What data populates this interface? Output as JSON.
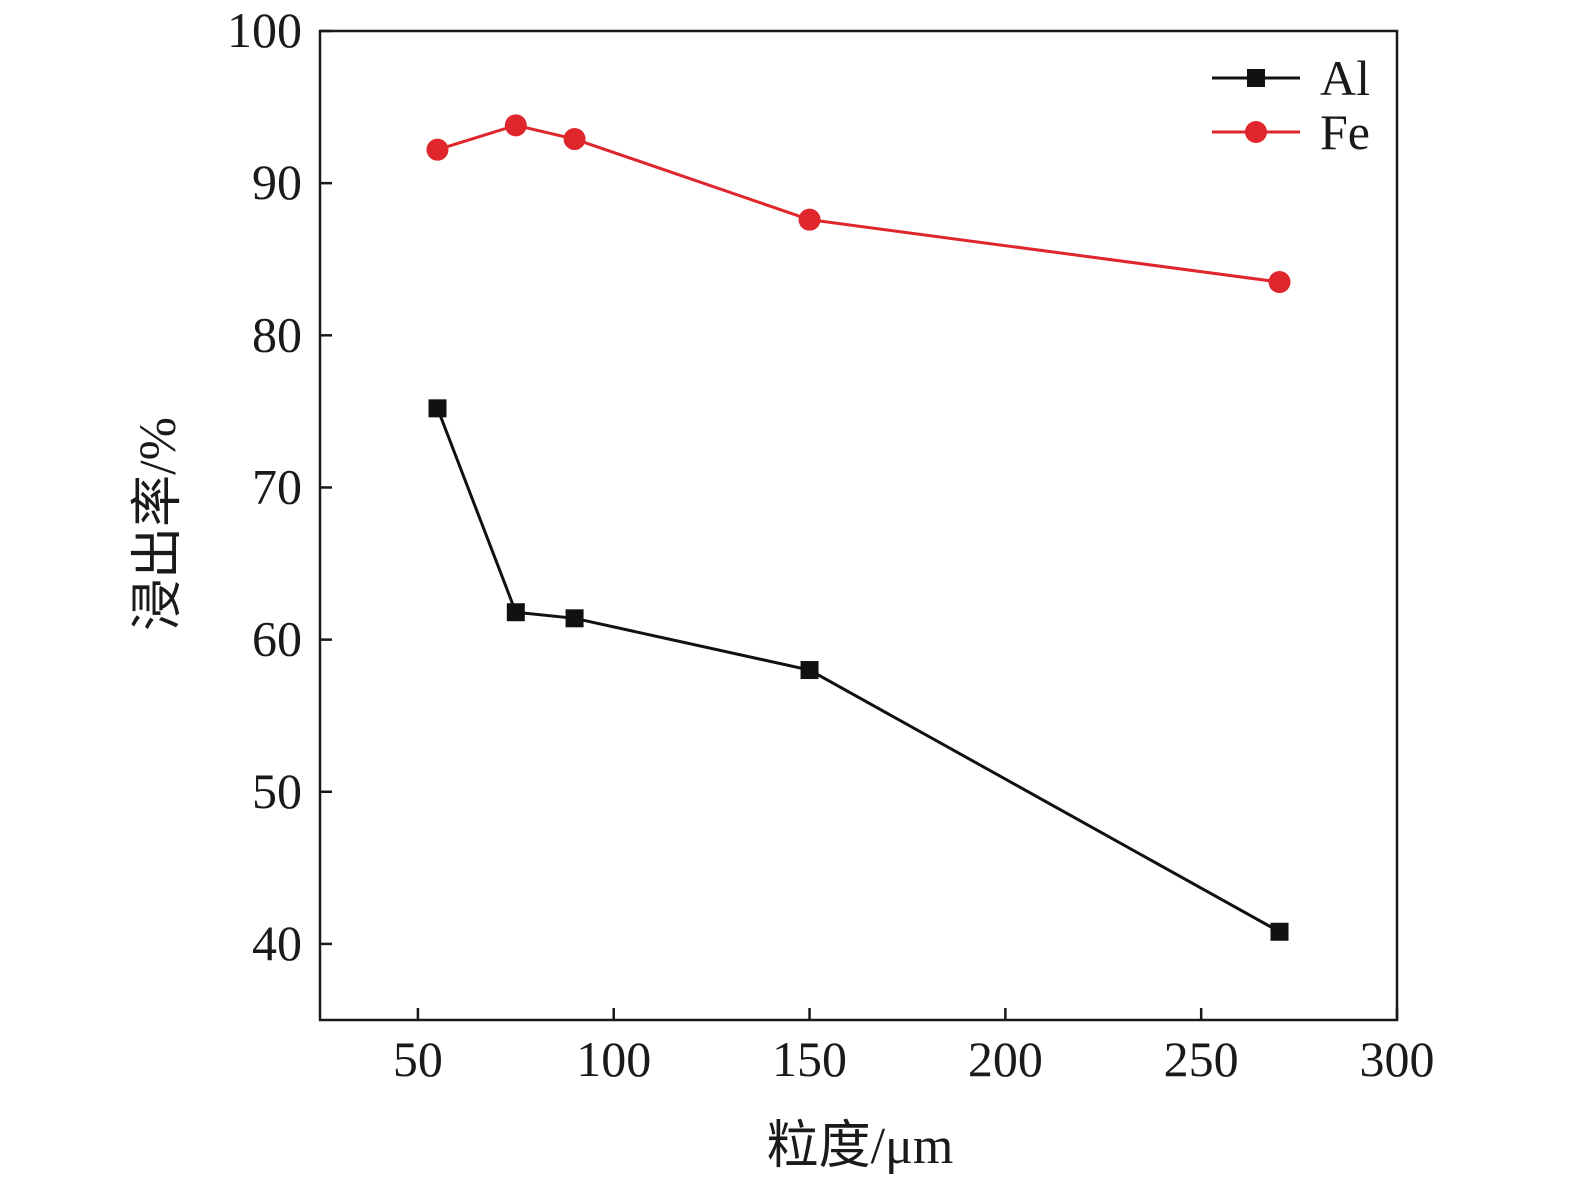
{
  "chart_data": {
    "type": "line",
    "title": "",
    "xlabel": "粒度/μm",
    "ylabel": "浸出率/%",
    "x": [
      55,
      75,
      90,
      150,
      270
    ],
    "xlim": [
      25,
      300
    ],
    "ylim": [
      35,
      100
    ],
    "x_ticks": [
      50,
      100,
      150,
      200,
      250,
      300
    ],
    "y_ticks": [
      40,
      50,
      60,
      70,
      80,
      90,
      100
    ],
    "grid": false,
    "legend_position": "top-right",
    "series": [
      {
        "name": "Al",
        "values": [
          75.2,
          61.8,
          61.4,
          58.0,
          40.8
        ],
        "color": "#111111",
        "marker": "square"
      },
      {
        "name": "Fe",
        "values": [
          92.2,
          93.8,
          92.9,
          87.6,
          83.5
        ],
        "color": "#e0262d",
        "marker": "circle"
      }
    ]
  }
}
